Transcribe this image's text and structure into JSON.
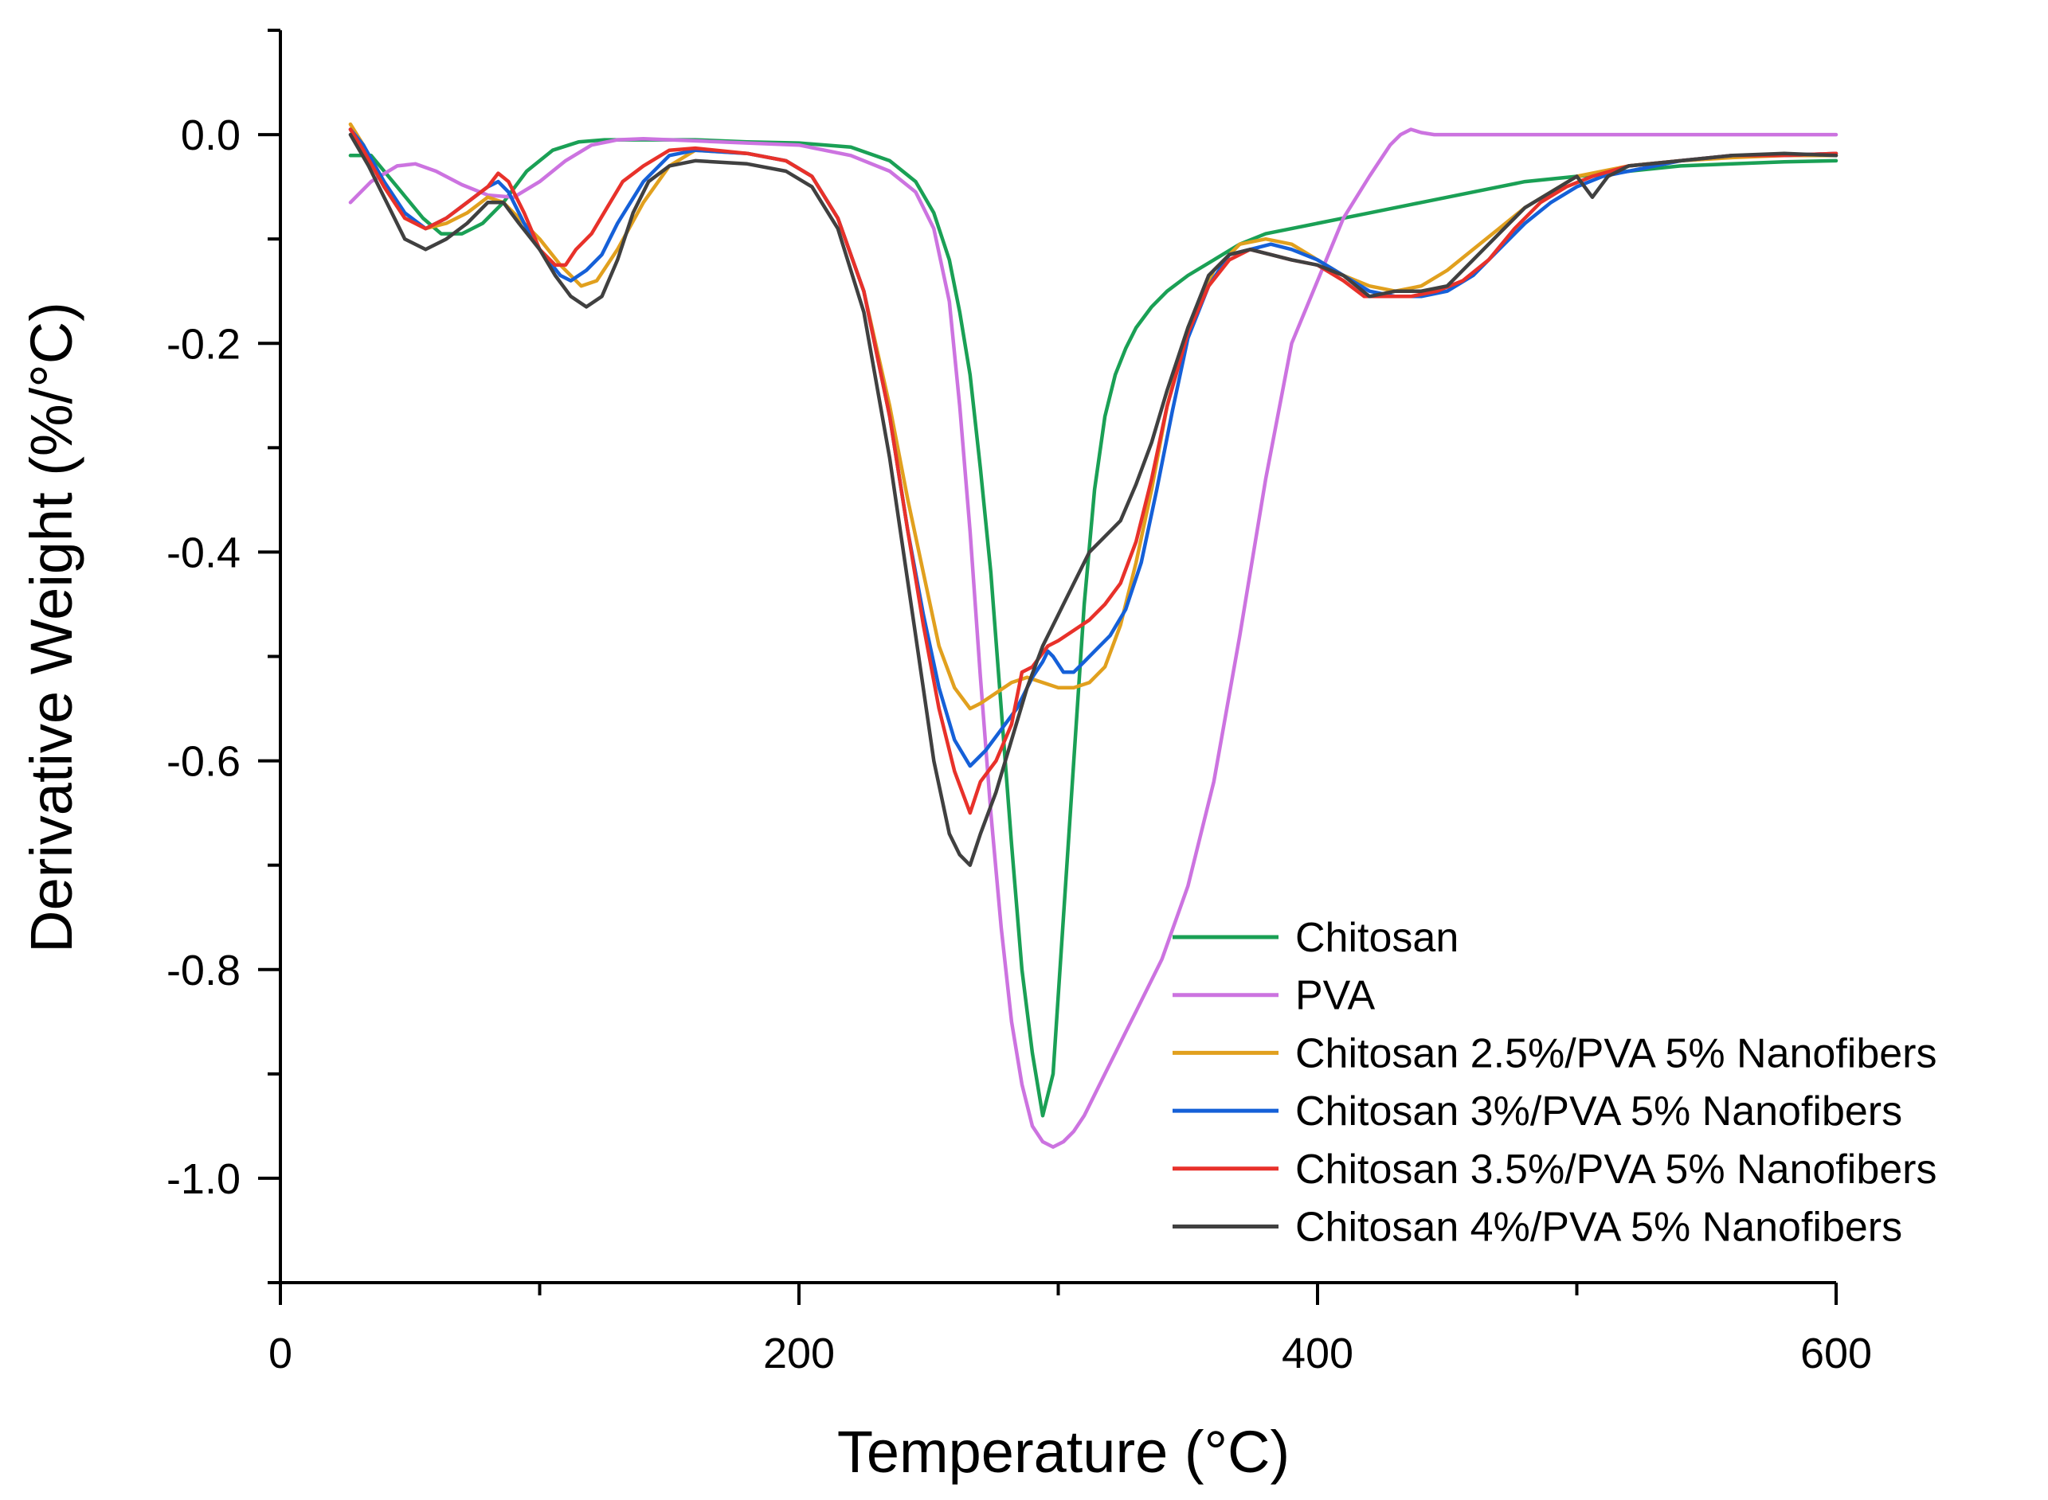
{
  "chart_data": {
    "type": "line",
    "title": "",
    "xlabel": "Temperature (°C)",
    "ylabel": "Derivative Weight (%/°C)",
    "xlim": [
      0,
      600
    ],
    "ylim": [
      -1.1,
      0.1
    ],
    "xticks": [
      0,
      200,
      400,
      600
    ],
    "xtick_labels": [
      "0",
      "200",
      "400",
      "600"
    ],
    "yticks": [
      0.0,
      -0.2,
      -0.4,
      -0.6,
      -0.8,
      -1.0
    ],
    "ytick_labels": [
      "0.0",
      "-0.2",
      "-0.4",
      "-0.6",
      "-0.8",
      "-1.0"
    ],
    "grid": false,
    "legend_position": "bottom-right",
    "series": [
      {
        "name": "Chitosan",
        "color": "#1aa055",
        "x": [
          27,
          35,
          45,
          55,
          62,
          70,
          78,
          86,
          95,
          105,
          115,
          125,
          140,
          160,
          180,
          200,
          220,
          235,
          245,
          252,
          258,
          262,
          266,
          270,
          274,
          278,
          282,
          286,
          290,
          294,
          298,
          302,
          306,
          310,
          314,
          318,
          322,
          326,
          330,
          336,
          342,
          350,
          360,
          370,
          380,
          390,
          400,
          420,
          440,
          460,
          480,
          500,
          520,
          540,
          560,
          580,
          600
        ],
        "y": [
          -0.02,
          -0.02,
          -0.05,
          -0.08,
          -0.095,
          -0.095,
          -0.085,
          -0.065,
          -0.035,
          -0.015,
          -0.007,
          -0.005,
          -0.005,
          -0.005,
          -0.007,
          -0.008,
          -0.012,
          -0.025,
          -0.045,
          -0.075,
          -0.12,
          -0.17,
          -0.23,
          -0.32,
          -0.42,
          -0.55,
          -0.68,
          -0.8,
          -0.88,
          -0.94,
          -0.9,
          -0.75,
          -0.6,
          -0.45,
          -0.34,
          -0.27,
          -0.23,
          -0.205,
          -0.185,
          -0.165,
          -0.15,
          -0.135,
          -0.12,
          -0.105,
          -0.095,
          -0.09,
          -0.085,
          -0.075,
          -0.065,
          -0.055,
          -0.045,
          -0.04,
          -0.035,
          -0.03,
          -0.028,
          -0.026,
          -0.025
        ]
      },
      {
        "name": "PVA",
        "color": "#cc73e0",
        "x": [
          27,
          35,
          45,
          52,
          60,
          70,
          80,
          90,
          100,
          110,
          120,
          130,
          140,
          160,
          180,
          200,
          220,
          235,
          245,
          252,
          258,
          262,
          266,
          270,
          274,
          278,
          282,
          286,
          290,
          294,
          298,
          302,
          306,
          310,
          314,
          318,
          322,
          326,
          330,
          340,
          350,
          360,
          370,
          380,
          390,
          400,
          410,
          420,
          428,
          432,
          436,
          440,
          445,
          460,
          500,
          550,
          600
        ],
        "y": [
          -0.065,
          -0.045,
          -0.03,
          -0.028,
          -0.035,
          -0.048,
          -0.058,
          -0.06,
          -0.045,
          -0.025,
          -0.01,
          -0.005,
          -0.004,
          -0.006,
          -0.008,
          -0.01,
          -0.02,
          -0.035,
          -0.055,
          -0.09,
          -0.16,
          -0.26,
          -0.38,
          -0.52,
          -0.65,
          -0.76,
          -0.85,
          -0.91,
          -0.95,
          -0.965,
          -0.97,
          -0.965,
          -0.955,
          -0.94,
          -0.92,
          -0.9,
          -0.88,
          -0.86,
          -0.84,
          -0.79,
          -0.72,
          -0.62,
          -0.48,
          -0.33,
          -0.2,
          -0.14,
          -0.08,
          -0.04,
          -0.01,
          0.0,
          0.005,
          0.002,
          0.0,
          0.0,
          0.0,
          0.0,
          0.0
        ]
      },
      {
        "name": "Chitosan 2.5%/PVA 5% Nanofibers",
        "color": "#e1a01e",
        "x": [
          27,
          32,
          40,
          48,
          56,
          64,
          72,
          80,
          86,
          92,
          100,
          108,
          116,
          122,
          130,
          140,
          150,
          160,
          180,
          195,
          205,
          215,
          225,
          235,
          242,
          248,
          254,
          260,
          266,
          270,
          276,
          282,
          288,
          294,
          300,
          306,
          312,
          318,
          324,
          330,
          336,
          342,
          350,
          360,
          370,
          380,
          390,
          400,
          410,
          420,
          430,
          440,
          450,
          460,
          470,
          480,
          490,
          500,
          510,
          520,
          540,
          560,
          580,
          600
        ],
        "y": [
          0.01,
          -0.01,
          -0.05,
          -0.08,
          -0.09,
          -0.085,
          -0.075,
          -0.06,
          -0.065,
          -0.08,
          -0.1,
          -0.125,
          -0.145,
          -0.14,
          -0.11,
          -0.065,
          -0.03,
          -0.015,
          -0.018,
          -0.025,
          -0.04,
          -0.08,
          -0.15,
          -0.26,
          -0.35,
          -0.42,
          -0.49,
          -0.53,
          -0.55,
          -0.545,
          -0.535,
          -0.525,
          -0.52,
          -0.525,
          -0.53,
          -0.53,
          -0.525,
          -0.51,
          -0.47,
          -0.41,
          -0.34,
          -0.26,
          -0.185,
          -0.13,
          -0.105,
          -0.1,
          -0.105,
          -0.12,
          -0.135,
          -0.145,
          -0.15,
          -0.145,
          -0.13,
          -0.11,
          -0.09,
          -0.07,
          -0.055,
          -0.04,
          -0.035,
          -0.03,
          -0.025,
          -0.022,
          -0.02,
          -0.02
        ]
      },
      {
        "name": "Chitosan 3%/PVA 5% Nanofibers",
        "color": "#1560d8",
        "x": [
          27,
          32,
          40,
          48,
          56,
          64,
          72,
          80,
          84,
          88,
          94,
          100,
          108,
          112,
          118,
          124,
          130,
          140,
          150,
          160,
          180,
          195,
          205,
          215,
          225,
          235,
          242,
          248,
          254,
          260,
          266,
          272,
          278,
          284,
          290,
          294,
          296,
          298,
          302,
          306,
          310,
          314,
          320,
          326,
          332,
          338,
          344,
          350,
          358,
          366,
          374,
          382,
          390,
          400,
          410,
          420,
          430,
          440,
          450,
          460,
          470,
          480,
          490,
          500,
          510,
          520,
          540,
          560,
          580,
          600
        ],
        "y": [
          0.005,
          -0.01,
          -0.045,
          -0.075,
          -0.09,
          -0.08,
          -0.065,
          -0.05,
          -0.045,
          -0.055,
          -0.085,
          -0.11,
          -0.135,
          -0.14,
          -0.13,
          -0.115,
          -0.085,
          -0.045,
          -0.02,
          -0.015,
          -0.018,
          -0.025,
          -0.04,
          -0.08,
          -0.15,
          -0.27,
          -0.38,
          -0.46,
          -0.53,
          -0.58,
          -0.605,
          -0.59,
          -0.57,
          -0.55,
          -0.52,
          -0.505,
          -0.495,
          -0.5,
          -0.515,
          -0.515,
          -0.505,
          -0.495,
          -0.48,
          -0.455,
          -0.41,
          -0.34,
          -0.265,
          -0.195,
          -0.145,
          -0.115,
          -0.11,
          -0.105,
          -0.11,
          -0.12,
          -0.135,
          -0.15,
          -0.155,
          -0.155,
          -0.15,
          -0.135,
          -0.11,
          -0.085,
          -0.065,
          -0.05,
          -0.04,
          -0.035,
          -0.025,
          -0.02,
          -0.02,
          -0.018
        ]
      },
      {
        "name": "Chitosan 3.5%/PVA 5% Nanofibers",
        "color": "#e8312a",
        "x": [
          27,
          32,
          40,
          48,
          56,
          64,
          72,
          80,
          84,
          88,
          94,
          100,
          106,
          110,
          114,
          120,
          126,
          132,
          140,
          150,
          160,
          180,
          195,
          205,
          215,
          225,
          235,
          242,
          248,
          254,
          260,
          266,
          270,
          276,
          282,
          286,
          290,
          296,
          300,
          306,
          312,
          318,
          324,
          330,
          336,
          342,
          350,
          358,
          366,
          374,
          382,
          390,
          400,
          410,
          418,
          426,
          436,
          446,
          456,
          466,
          476,
          486,
          496,
          506,
          520,
          540,
          560,
          580,
          600
        ],
        "y": [
          0.005,
          -0.015,
          -0.05,
          -0.08,
          -0.09,
          -0.08,
          -0.065,
          -0.05,
          -0.037,
          -0.045,
          -0.075,
          -0.11,
          -0.125,
          -0.125,
          -0.11,
          -0.095,
          -0.07,
          -0.045,
          -0.03,
          -0.015,
          -0.013,
          -0.018,
          -0.025,
          -0.04,
          -0.08,
          -0.15,
          -0.27,
          -0.38,
          -0.47,
          -0.55,
          -0.61,
          -0.65,
          -0.62,
          -0.6,
          -0.565,
          -0.515,
          -0.51,
          -0.49,
          -0.485,
          -0.475,
          -0.465,
          -0.45,
          -0.43,
          -0.39,
          -0.33,
          -0.26,
          -0.19,
          -0.145,
          -0.12,
          -0.11,
          -0.115,
          -0.12,
          -0.125,
          -0.14,
          -0.155,
          -0.155,
          -0.155,
          -0.15,
          -0.14,
          -0.12,
          -0.09,
          -0.065,
          -0.05,
          -0.04,
          -0.03,
          -0.025,
          -0.02,
          -0.02,
          -0.018
        ]
      },
      {
        "name": "Chitosan 4%/PVA 5% Nanofibers",
        "color": "#404040",
        "x": [
          27,
          34,
          40,
          48,
          56,
          64,
          72,
          80,
          86,
          92,
          100,
          106,
          112,
          118,
          124,
          130,
          136,
          142,
          150,
          160,
          180,
          195,
          205,
          215,
          225,
          235,
          245,
          252,
          258,
          262,
          266,
          270,
          276,
          282,
          288,
          294,
          300,
          306,
          312,
          318,
          324,
          330,
          336,
          342,
          350,
          358,
          366,
          374,
          382,
          390,
          400,
          410,
          420,
          430,
          440,
          450,
          460,
          470,
          480,
          490,
          500,
          506,
          512,
          520,
          540,
          560,
          580,
          600
        ],
        "y": [
          0.0,
          -0.03,
          -0.06,
          -0.1,
          -0.11,
          -0.1,
          -0.085,
          -0.065,
          -0.065,
          -0.085,
          -0.11,
          -0.135,
          -0.155,
          -0.165,
          -0.155,
          -0.12,
          -0.075,
          -0.045,
          -0.03,
          -0.025,
          -0.028,
          -0.035,
          -0.05,
          -0.09,
          -0.17,
          -0.31,
          -0.48,
          -0.6,
          -0.67,
          -0.69,
          -0.7,
          -0.67,
          -0.63,
          -0.58,
          -0.53,
          -0.49,
          -0.46,
          -0.43,
          -0.4,
          -0.385,
          -0.37,
          -0.335,
          -0.295,
          -0.245,
          -0.185,
          -0.135,
          -0.115,
          -0.11,
          -0.115,
          -0.12,
          -0.125,
          -0.135,
          -0.155,
          -0.15,
          -0.15,
          -0.145,
          -0.12,
          -0.095,
          -0.07,
          -0.055,
          -0.04,
          -0.06,
          -0.04,
          -0.03,
          -0.025,
          -0.02,
          -0.018,
          -0.02
        ]
      }
    ]
  }
}
